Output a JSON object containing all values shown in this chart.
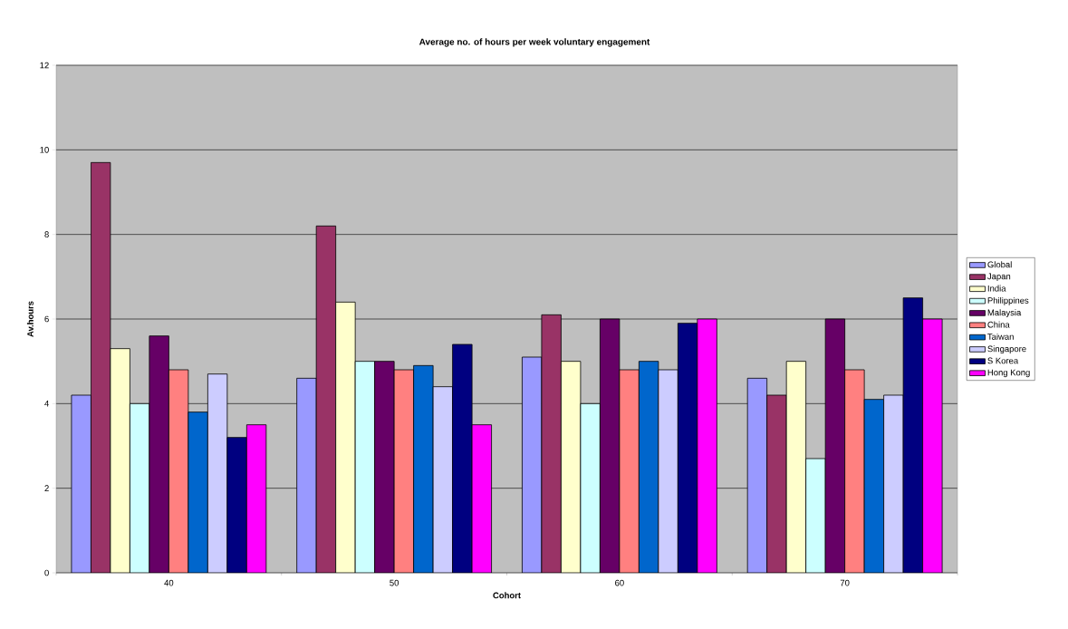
{
  "chart_data": {
    "type": "bar",
    "title": "Average no. of hours per week voluntary engagement",
    "xlabel": "Cohort",
    "ylabel": "Av.hours",
    "categories": [
      "40",
      "50",
      "60",
      "70"
    ],
    "series": [
      {
        "name": "Global",
        "color": "#9999ff",
        "values": [
          4.2,
          4.6,
          5.1,
          4.6
        ]
      },
      {
        "name": "Japan",
        "color": "#993366",
        "values": [
          9.7,
          8.2,
          6.1,
          4.2
        ]
      },
      {
        "name": "India",
        "color": "#ffffcc",
        "values": [
          5.3,
          6.4,
          5.0,
          5.0
        ]
      },
      {
        "name": "Philippines",
        "color": "#ccffff",
        "values": [
          4.0,
          5.0,
          4.0,
          2.7
        ]
      },
      {
        "name": "Malaysia",
        "color": "#660066",
        "values": [
          5.6,
          5.0,
          6.0,
          6.0
        ]
      },
      {
        "name": "China",
        "color": "#ff8080",
        "values": [
          4.8,
          4.8,
          4.8,
          4.8
        ]
      },
      {
        "name": "Taiwan",
        "color": "#0066cc",
        "values": [
          3.8,
          4.9,
          5.0,
          4.1
        ]
      },
      {
        "name": "Singapore",
        "color": "#ccccff",
        "values": [
          4.7,
          4.4,
          4.8,
          4.2
        ]
      },
      {
        "name": "S Korea",
        "color": "#000080",
        "values": [
          3.2,
          5.4,
          5.9,
          6.5
        ]
      },
      {
        "name": "Hong Kong",
        "color": "#ff00ff",
        "values": [
          3.5,
          3.5,
          6.0,
          6.0
        ]
      }
    ],
    "ylim": [
      0,
      12
    ],
    "yticks": [
      0,
      2,
      4,
      6,
      8,
      10,
      12
    ],
    "grid": "y",
    "legend": "right"
  }
}
